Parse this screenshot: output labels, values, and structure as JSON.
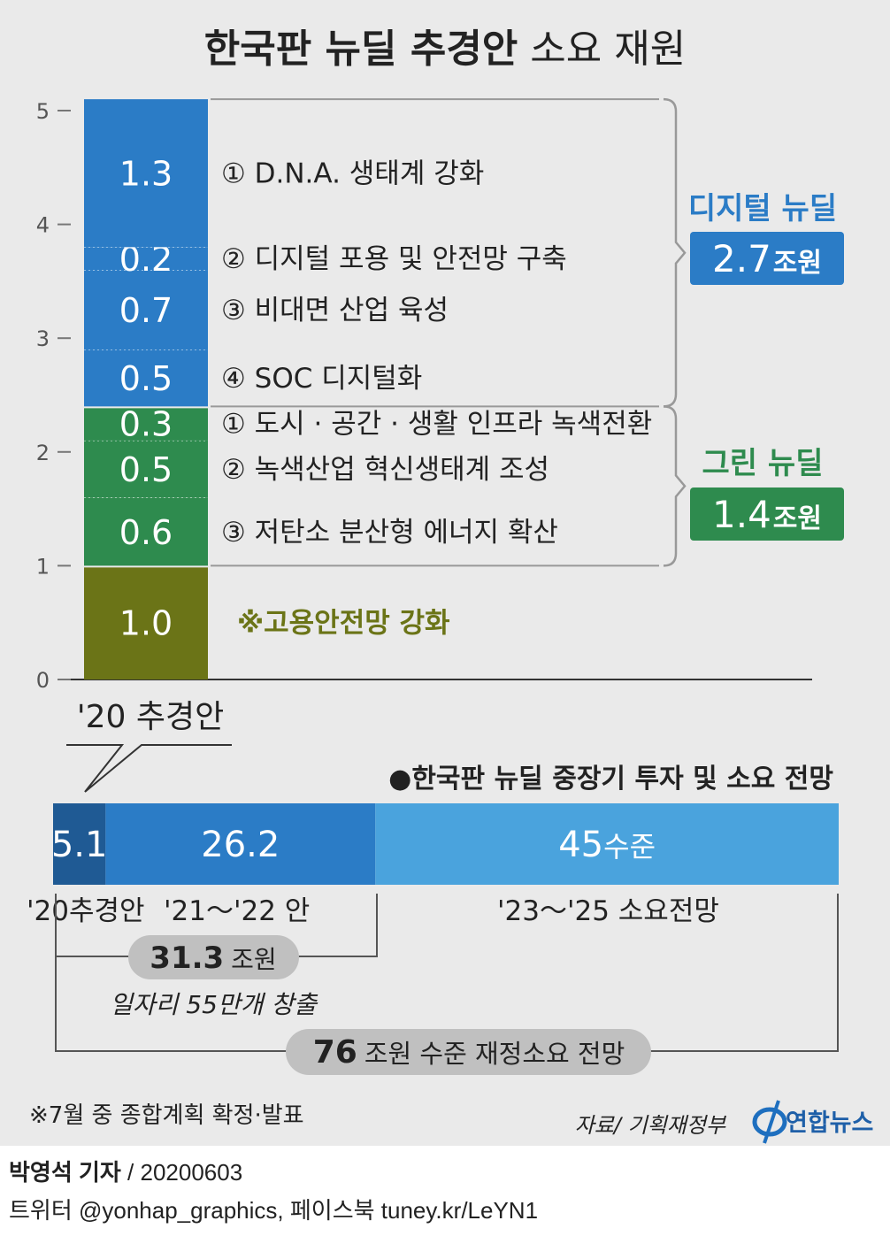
{
  "title": {
    "bold": "한국판 뉴딜 추경안",
    "light": "소요 재원"
  },
  "chart_data": [
    {
      "type": "bar",
      "stacked": true,
      "categories": [
        "'20 추경안"
      ],
      "yticks": [
        "0",
        "1",
        "2",
        "3",
        "4",
        "5"
      ],
      "ylim": [
        0,
        5
      ],
      "segments": [
        {
          "value": 1.0,
          "label": "1.0",
          "group": "employment",
          "desc": "※고용안전망 강화"
        },
        {
          "value": 0.6,
          "label": "0.6",
          "group": "green",
          "desc": "③ 저탄소 분산형 에너지 확산"
        },
        {
          "value": 0.5,
          "label": "0.5",
          "group": "green",
          "desc": "② 녹색산업 혁신생태계 조성"
        },
        {
          "value": 0.3,
          "label": "0.3",
          "group": "green",
          "desc": "① 도시 · 공간 · 생활 인프라 녹색전환"
        },
        {
          "value": 0.5,
          "label": "0.5",
          "group": "digital",
          "desc": "④ SOC 디지털화"
        },
        {
          "value": 0.7,
          "label": "0.7",
          "group": "digital",
          "desc": "③ 비대면 산업 육성"
        },
        {
          "value": 0.2,
          "label": "0.2",
          "group": "digital",
          "desc": "② 디지털 포용 및 안전망 구축"
        },
        {
          "value": 1.3,
          "label": "1.3",
          "group": "digital",
          "desc": "① D.N.A. 생태계 강화"
        }
      ],
      "groups": {
        "digital": {
          "name": "디지털 뉴딜",
          "total": "2.7",
          "unit": "조원"
        },
        "green": {
          "name": "그린 뉴딜",
          "total": "1.4",
          "unit": "조원"
        }
      },
      "category_label": "'20 추경안"
    },
    {
      "type": "bar",
      "horizontal": true,
      "stacked": true,
      "title": "●한국판 뉴딜 중장기 투자 및 소요 전망",
      "segments": [
        {
          "value": 5.1,
          "label": "5.1",
          "unit": "",
          "category": "'20추경안"
        },
        {
          "value": 26.2,
          "label": "26.2",
          "unit": "",
          "category": "'21～'22 안"
        },
        {
          "value": 45,
          "label": "45",
          "unit": "수준",
          "category": "'23～'25 소요전망"
        }
      ],
      "annotations": [
        {
          "value": "31.3",
          "text": "조원",
          "note": "일자리 55만개 창출"
        },
        {
          "value": "76",
          "text": "조원 수준 재정소요 전망"
        }
      ]
    }
  ],
  "colors": {
    "digital": "#2b7cc6",
    "green": "#2e8b4e",
    "employment": "#6b7417",
    "seg1": "#1f5a94",
    "seg2": "#2b7cc6",
    "seg3": "#4aa3dd",
    "employment_text": "#6b7417"
  },
  "note": "※7월 중 종합계획 확정·발표",
  "source": "자료/ 기획재정부",
  "logo": "연합뉴스",
  "byline": {
    "reporter": "박영석 기자",
    "date": " /  20200603"
  },
  "social": "트위터 @yonhap_graphics, 페이스북 tuney.kr/LeYN1"
}
